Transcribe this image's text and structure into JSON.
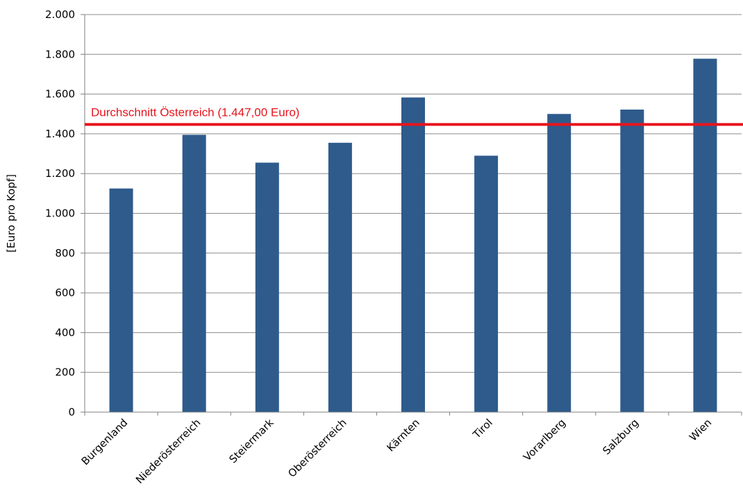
{
  "chart_data": {
    "type": "bar",
    "categories": [
      "Burgenland",
      "Niederösterreich",
      "Steiermark",
      "Oberösterreich",
      "Kärnten",
      "Tirol",
      "Vorarlberg",
      "Salzburg",
      "Wien"
    ],
    "values": [
      1125,
      1395,
      1255,
      1355,
      1583,
      1290,
      1500,
      1522,
      1778
    ],
    "ylabel": "[Euro pro Kopf]",
    "xlabel": "",
    "ylim": [
      0,
      2000
    ],
    "yticks": [
      0,
      200,
      400,
      600,
      800,
      1000,
      1200,
      1400,
      1600,
      1800,
      2000
    ],
    "ytick_labels": [
      "0",
      "200",
      "400",
      "600",
      "800",
      "1.000",
      "1.200",
      "1.400",
      "1.600",
      "1.800",
      "2.000"
    ],
    "grid": true,
    "legend": "none",
    "bar_color": "#2e5b8c",
    "reference_line": {
      "value": 1447,
      "label": "Durchschnitt Österreich (1.447,00 Euro)",
      "color": "#e8141c"
    }
  }
}
